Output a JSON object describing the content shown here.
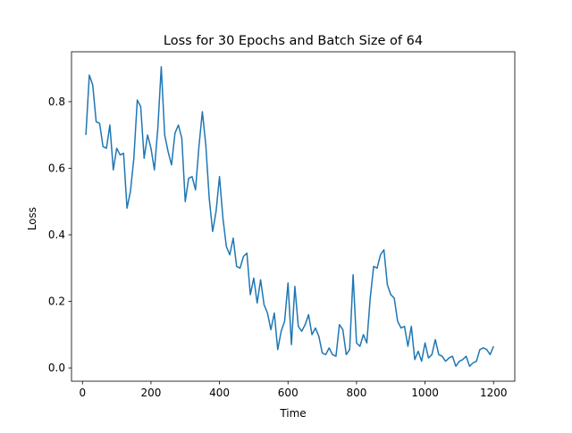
{
  "chart_data": {
    "type": "line",
    "title": "Loss for 30 Epochs and Batch Size of 64",
    "xlabel": "Time",
    "ylabel": "Loss",
    "xlim": [
      -32,
      1262
    ],
    "ylim": [
      -0.04,
      0.95
    ],
    "xticks": [
      0,
      200,
      400,
      600,
      800,
      1000,
      1200
    ],
    "yticks": [
      0.0,
      0.2,
      0.4,
      0.6,
      0.8
    ],
    "xtick_labels": [
      "0",
      "200",
      "400",
      "600",
      "800",
      "1000",
      "1200"
    ],
    "ytick_labels": [
      "0.0",
      "0.2",
      "0.4",
      "0.6",
      "0.8"
    ],
    "grid": false,
    "line_color": "#1f77b4",
    "series": [
      {
        "x": [
          10,
          20,
          30,
          40,
          50,
          60,
          70,
          80,
          90,
          100,
          110,
          120,
          130,
          140,
          150,
          160,
          170,
          180,
          190,
          200,
          210,
          220,
          230,
          240,
          250,
          260,
          270,
          280,
          290,
          300,
          310,
          320,
          330,
          340,
          350,
          360,
          370,
          380,
          390,
          400,
          410,
          420,
          430,
          440,
          450,
          460,
          470,
          480,
          490,
          500,
          510,
          520,
          530,
          540,
          550,
          560,
          570,
          580,
          590,
          600,
          610,
          620,
          630,
          640,
          650,
          660,
          670,
          680,
          690,
          700,
          710,
          720,
          730,
          740,
          750,
          760,
          770,
          780,
          790,
          800,
          810,
          820,
          830,
          840,
          850,
          860,
          870,
          880,
          890,
          900,
          910,
          920,
          930,
          940,
          950,
          960,
          970,
          980,
          990,
          1000,
          1010,
          1020,
          1030,
          1040,
          1050,
          1060,
          1070,
          1080,
          1090,
          1100,
          1110,
          1120,
          1130,
          1140,
          1150,
          1160,
          1170,
          1180,
          1190,
          1200
        ],
        "y": [
          0.7,
          0.88,
          0.85,
          0.74,
          0.735,
          0.665,
          0.66,
          0.73,
          0.595,
          0.66,
          0.64,
          0.645,
          0.48,
          0.53,
          0.63,
          0.805,
          0.785,
          0.63,
          0.7,
          0.66,
          0.595,
          0.72,
          0.905,
          0.7,
          0.65,
          0.61,
          0.705,
          0.73,
          0.69,
          0.5,
          0.57,
          0.575,
          0.535,
          0.665,
          0.77,
          0.67,
          0.51,
          0.41,
          0.47,
          0.575,
          0.45,
          0.365,
          0.34,
          0.39,
          0.305,
          0.3,
          0.335,
          0.345,
          0.22,
          0.27,
          0.195,
          0.265,
          0.19,
          0.165,
          0.115,
          0.165,
          0.055,
          0.11,
          0.14,
          0.255,
          0.07,
          0.245,
          0.125,
          0.11,
          0.13,
          0.16,
          0.1,
          0.12,
          0.095,
          0.045,
          0.04,
          0.06,
          0.04,
          0.035,
          0.13,
          0.115,
          0.04,
          0.055,
          0.28,
          0.075,
          0.065,
          0.1,
          0.075,
          0.21,
          0.305,
          0.3,
          0.34,
          0.355,
          0.25,
          0.22,
          0.21,
          0.14,
          0.12,
          0.125,
          0.065,
          0.125,
          0.025,
          0.05,
          0.02,
          0.075,
          0.03,
          0.04,
          0.085,
          0.04,
          0.035,
          0.02,
          0.03,
          0.035,
          0.005,
          0.02,
          0.025,
          0.035,
          0.005,
          0.015,
          0.02,
          0.055,
          0.06,
          0.055,
          0.04,
          0.065
        ]
      }
    ]
  }
}
